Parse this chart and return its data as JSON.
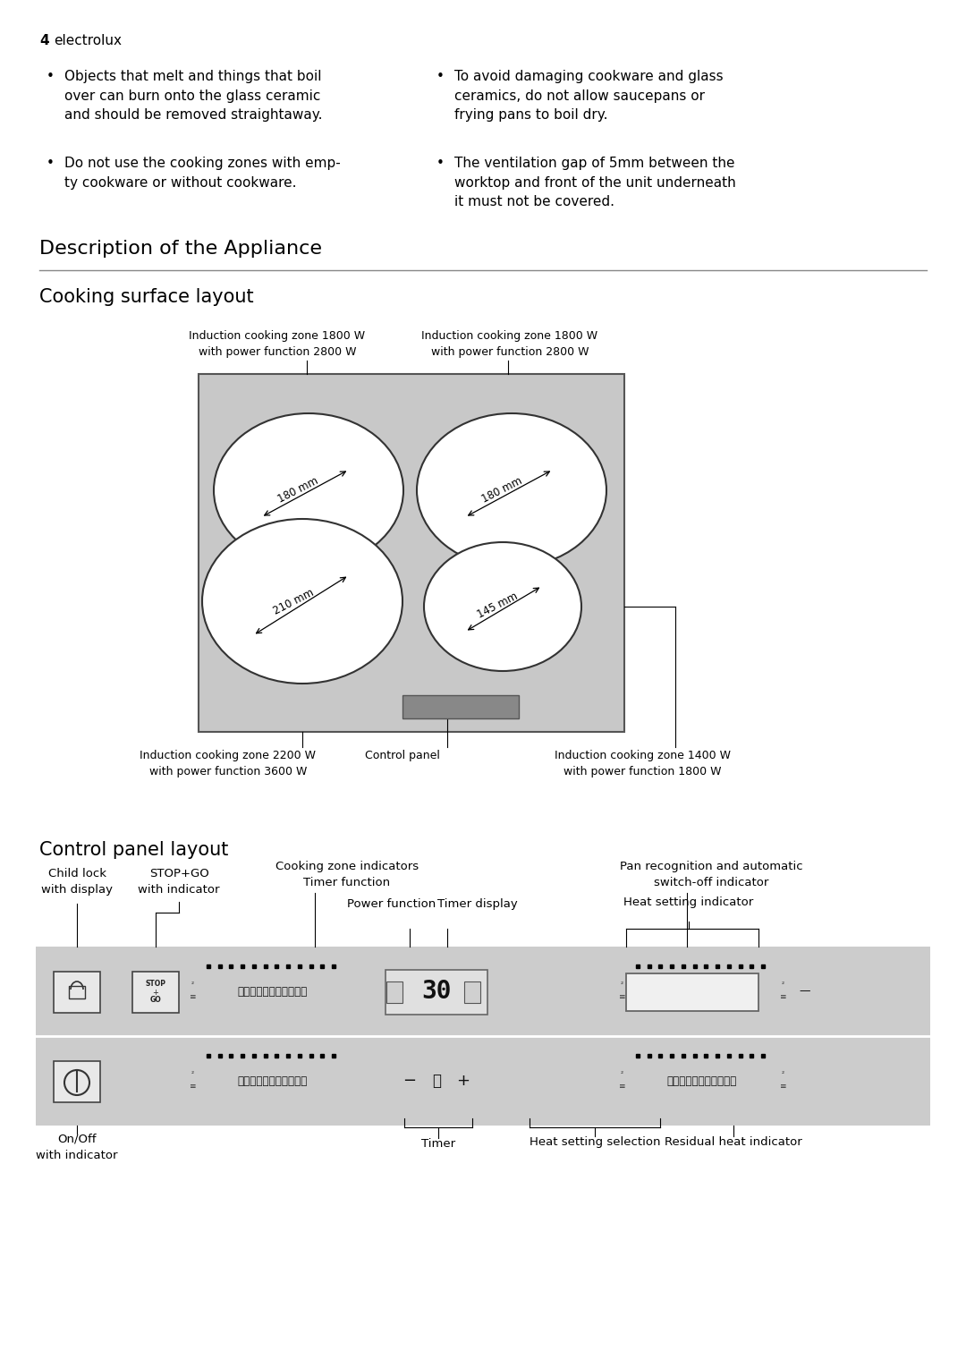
{
  "bg_color": "#ffffff",
  "gray_color": "#c8c8c8",
  "dark_gray": "#555555",
  "panel_bg": "#cccccc",
  "text_color": "#000000",
  "page_num": "4",
  "brand": "electrolux",
  "bullet_left_1": "Objects that melt and things that boil\nover can burn onto the glass ceramic\nand should be removed straightaway.",
  "bullet_left_2": "Do not use the cooking zones with emp-\nty cookware or without cookware.",
  "bullet_right_1": "To avoid damaging cookware and glass\nceramics, do not allow saucepans or\nfrying pans to boil dry.",
  "bullet_right_2": "The ventilation gap of 5mm between the\nworktop and front of the unit underneath\nit must not be covered.",
  "section1": "Description of the Appliance",
  "section2": "Cooking surface layout",
  "section3": "Control panel layout",
  "zone_tl": "Induction cooking zone 1800 W\nwith power function 2800 W",
  "zone_tr": "Induction cooking zone 1800 W\nwith power function 2800 W",
  "zone_bl": "Induction cooking zone 2200 W\nwith power function 3600 W",
  "zone_br": "Induction cooking zone 1400 W\nwith power function 1800 W",
  "control_panel_lbl": "Control panel",
  "lbl_child_lock": "Child lock\nwith display",
  "lbl_stopgo": "STOP+GO\nwith indicator",
  "lbl_zone_ind": "Cooking zone indicators\nTimer function",
  "lbl_power_fn": "Power function",
  "lbl_timer_disp": "Timer display",
  "lbl_pan_recog": "Pan recognition and automatic\nswitch-off indicator",
  "lbl_heat_ind": "Heat setting indicator",
  "lbl_onoff": "On/Off\nwith indicator",
  "lbl_timer": "Timer",
  "lbl_heat_sel": "Heat setting selection",
  "lbl_residual": "Residual heat indicator"
}
